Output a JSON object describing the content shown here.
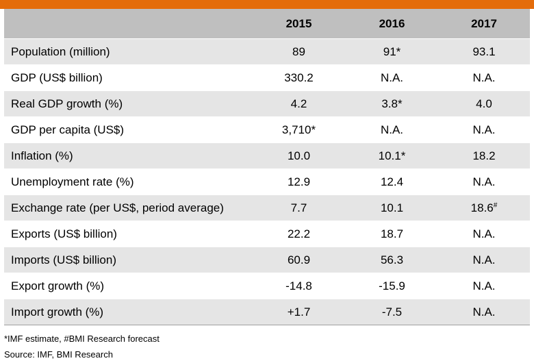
{
  "header": {
    "blank": "",
    "years": [
      "2015",
      "2016",
      "2017"
    ]
  },
  "rows": [
    {
      "label": "Population (million)",
      "v": [
        "89",
        "91*",
        "93.1"
      ]
    },
    {
      "label": "GDP (US$ billion)",
      "v": [
        "330.2",
        "N.A.",
        "N.A."
      ]
    },
    {
      "label": "Real GDP growth (%)",
      "v": [
        "4.2",
        "3.8*",
        "4.0"
      ]
    },
    {
      "label": "GDP per capita (US$)",
      "v": [
        "3,710*",
        "N.A.",
        "N.A."
      ]
    },
    {
      "label": "Inflation (%)",
      "v": [
        "10.0",
        "10.1*",
        "18.2"
      ]
    },
    {
      "label": "Unemployment rate (%)",
      "v": [
        "12.9",
        "12.4",
        "N.A."
      ]
    },
    {
      "label": "Exchange rate (per US$, period average)",
      "v": [
        "7.7",
        "10.1",
        "18.6"
      ],
      "v3_sup": "#"
    },
    {
      "label": "Exports (US$ billion)",
      "v": [
        "22.2",
        "18.7",
        "N.A."
      ]
    },
    {
      "label": "Imports (US$ billion)",
      "v": [
        "60.9",
        "56.3",
        "N.A."
      ]
    },
    {
      "label": "Export growth (%)",
      "v": [
        "-14.8",
        "-15.9",
        "N.A."
      ]
    },
    {
      "label": "Import growth (%)",
      "v": [
        "+1.7",
        "-7.5",
        "N.A."
      ]
    }
  ],
  "footnotes": {
    "estimate": "*IMF estimate, #BMI Research forecast",
    "source": "Source: IMF, BMI Research"
  },
  "colors": {
    "accent_bar": "#e46c0a",
    "header_bg": "#bfbfbf",
    "stripe_bg": "#e5e5e5"
  }
}
